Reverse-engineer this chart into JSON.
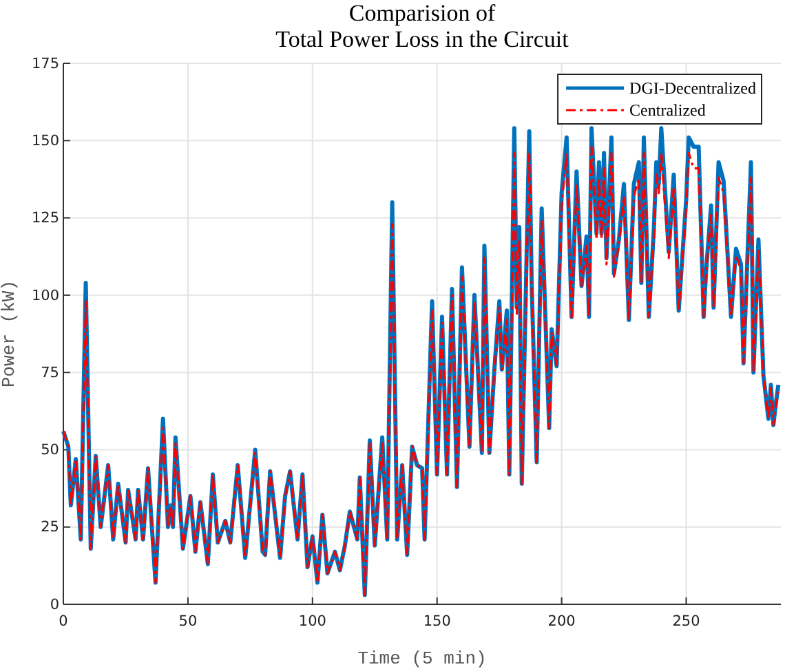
{
  "chart_data": {
    "type": "line",
    "title": "Comparision of\nTotal Power Loss in the Circuit",
    "xlabel": "Time (5 min)",
    "ylabel": "Power (kW)",
    "x": [
      0,
      2,
      3,
      5,
      7,
      9,
      11,
      13,
      15,
      18,
      20,
      22,
      25,
      26,
      29,
      30,
      32,
      34,
      37,
      40,
      42,
      43,
      44,
      45,
      48,
      51,
      53,
      55,
      58,
      60,
      62,
      65,
      67,
      70,
      73,
      77,
      80,
      81,
      83,
      87,
      89,
      91,
      94,
      96,
      98,
      100,
      102,
      104,
      106,
      109,
      111,
      113,
      115,
      118,
      119,
      121,
      123,
      125,
      128,
      130,
      132,
      134,
      136,
      138,
      140,
      142,
      144,
      145,
      148,
      150,
      152,
      154,
      156,
      158,
      160,
      163,
      165,
      168,
      169,
      171,
      173,
      175,
      176,
      178,
      179,
      181,
      182,
      183,
      184,
      187,
      188,
      190,
      192,
      195,
      196,
      198,
      200,
      202,
      204,
      206,
      208,
      210,
      211,
      212,
      214,
      215,
      216,
      217,
      218,
      220,
      221,
      223,
      225,
      227,
      229,
      231,
      232,
      233,
      235,
      237,
      238,
      239,
      240,
      243,
      245,
      247,
      250,
      251,
      253,
      255,
      257,
      258,
      260,
      261,
      263,
      265,
      268,
      270,
      272,
      273,
      276,
      277,
      279,
      281,
      283,
      284,
      285,
      286,
      287
    ],
    "series": [
      {
        "name": "DGI-Decentralized",
        "color": "#0072bd",
        "line_style": "solid",
        "values": [
          56,
          51,
          32,
          47,
          21,
          104,
          18,
          48,
          25,
          45,
          21,
          39,
          20,
          37,
          21,
          37,
          21,
          44,
          7,
          60,
          25,
          32,
          25,
          54,
          18,
          35,
          17,
          33,
          13,
          42,
          20,
          27,
          20,
          45,
          15,
          50,
          17,
          16,
          43,
          15,
          35,
          43,
          21,
          42,
          12,
          22,
          7,
          29,
          10,
          17,
          11,
          19,
          30,
          21,
          41,
          3,
          53,
          19,
          54,
          21,
          130,
          21,
          45,
          16,
          51,
          45,
          44,
          21,
          98,
          42,
          93,
          42,
          102,
          38,
          109,
          51,
          100,
          49,
          116,
          49,
          76,
          98,
          76,
          95,
          42,
          154,
          96,
          122,
          39,
          153,
          103,
          46,
          128,
          57,
          89,
          77,
          133,
          151,
          93,
          140,
          103,
          119,
          93,
          154,
          120,
          143,
          120,
          146,
          112,
          151,
          107,
          118,
          136,
          92,
          136,
          143,
          104,
          151,
          93,
          121,
          143,
          136,
          154,
          114,
          139,
          95,
          131,
          151,
          148,
          148,
          93,
          108,
          129,
          96,
          143,
          137,
          93,
          115,
          110,
          78,
          143,
          75,
          118,
          74,
          60,
          71,
          58,
          65,
          71
        ]
      },
      {
        "name": "Centralized",
        "color": "#ff0000",
        "line_style": "dashed",
        "values": [
          56,
          51,
          32,
          47,
          21,
          98,
          18,
          48,
          25,
          45,
          21,
          39,
          20,
          37,
          21,
          37,
          21,
          44,
          7,
          57,
          25,
          32,
          25,
          52,
          18,
          35,
          17,
          33,
          13,
          42,
          20,
          27,
          20,
          45,
          15,
          49,
          17,
          16,
          43,
          15,
          35,
          43,
          21,
          42,
          12,
          22,
          7,
          29,
          10,
          17,
          11,
          19,
          30,
          21,
          41,
          3,
          52,
          19,
          52,
          21,
          123,
          21,
          45,
          16,
          51,
          45,
          44,
          21,
          95,
          42,
          91,
          42,
          100,
          38,
          106,
          51,
          98,
          49,
          112,
          49,
          76,
          96,
          76,
          92,
          42,
          146,
          94,
          118,
          39,
          146,
          100,
          46,
          124,
          57,
          88,
          77,
          129,
          146,
          92,
          136,
          103,
          116,
          93,
          148,
          118,
          138,
          118,
          141,
          110,
          146,
          106,
          117,
          132,
          92,
          132,
          138,
          104,
          146,
          93,
          119,
          139,
          133,
          146,
          112,
          135,
          95,
          128,
          146,
          141,
          141,
          93,
          107,
          126,
          96,
          138,
          133,
          93,
          113,
          108,
          78,
          138,
          75,
          115,
          74,
          60,
          70,
          58,
          64,
          70
        ]
      }
    ],
    "xlim": [
      0,
      288
    ],
    "ylim": [
      0,
      175
    ],
    "xticks": [
      0,
      50,
      100,
      150,
      200,
      250
    ],
    "yticks": [
      0,
      25,
      50,
      75,
      100,
      125,
      150,
      175
    ],
    "grid": true,
    "legend": "top right"
  }
}
